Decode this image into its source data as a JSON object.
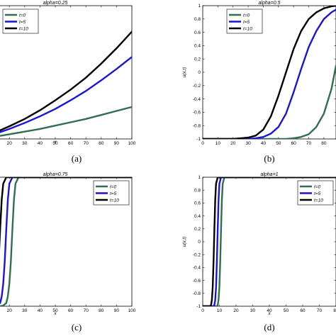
{
  "colors": {
    "t0": "#2f6e4e",
    "t5": "#1a14d6",
    "t10": "#000000"
  },
  "chart_data": [
    {
      "type": "line",
      "panel": "a",
      "caption": "(a)",
      "title": "alpha=0.25",
      "xlabel": "x",
      "ylabel": "",
      "xlim": [
        0,
        100
      ],
      "ylim": [
        -1,
        1
      ],
      "xticks": [
        10,
        20,
        30,
        40,
        50,
        60,
        70,
        80,
        90,
        100
      ],
      "yticks": [],
      "legend_position": "top-left",
      "series": [
        {
          "name": "t=0",
          "color_key": "t0",
          "x": [
            0,
            10,
            20,
            30,
            40,
            50,
            60,
            70,
            80,
            90,
            100
          ],
          "y": [
            -1,
            -0.97,
            -0.93,
            -0.89,
            -0.85,
            -0.8,
            -0.75,
            -0.7,
            -0.64,
            -0.58,
            -0.52
          ]
        },
        {
          "name": "t=5",
          "color_key": "t5",
          "x": [
            0,
            10,
            20,
            30,
            40,
            50,
            60,
            70,
            80,
            90,
            100
          ],
          "y": [
            -1,
            -0.93,
            -0.85,
            -0.76,
            -0.66,
            -0.55,
            -0.42,
            -0.28,
            -0.12,
            0.05,
            0.23
          ]
        },
        {
          "name": "t=10",
          "color_key": "t10",
          "x": [
            0,
            10,
            20,
            30,
            40,
            50,
            60,
            70,
            80,
            90,
            100
          ],
          "y": [
            -1,
            -0.91,
            -0.81,
            -0.7,
            -0.57,
            -0.42,
            -0.26,
            -0.08,
            0.13,
            0.36,
            0.61
          ]
        }
      ]
    },
    {
      "type": "line",
      "panel": "b",
      "caption": "(b)",
      "title": "alpha=0.5",
      "xlabel": "",
      "ylabel": "u(x,t)",
      "xlim": [
        0,
        88
      ],
      "ylim": [
        -1,
        1
      ],
      "xticks": [
        0,
        10,
        20,
        30,
        40,
        50,
        60,
        70,
        80
      ],
      "yticks": [
        -1,
        -0.8,
        -0.6,
        -0.4,
        -0.2,
        0,
        0.2,
        0.4,
        0.6,
        0.8,
        1
      ],
      "legend_position": "top-left",
      "series": [
        {
          "name": "t=0",
          "color_key": "t0",
          "x": [
            0,
            20,
            40,
            50,
            55,
            60,
            65,
            70,
            75,
            80,
            85,
            88
          ],
          "y": [
            -1,
            -1,
            -1,
            -1,
            -1,
            -0.99,
            -0.97,
            -0.93,
            -0.82,
            -0.62,
            -0.25,
            0.1
          ]
        },
        {
          "name": "t=5",
          "color_key": "t5",
          "x": [
            0,
            20,
            30,
            35,
            40,
            45,
            50,
            55,
            60,
            65,
            70,
            75,
            80,
            85,
            88
          ],
          "y": [
            -1,
            -1,
            -1,
            -0.99,
            -0.97,
            -0.92,
            -0.82,
            -0.62,
            -0.3,
            0.05,
            0.38,
            0.62,
            0.8,
            0.9,
            0.94
          ]
        },
        {
          "name": "t=10",
          "color_key": "t10",
          "x": [
            0,
            20,
            25,
            30,
            35,
            40,
            45,
            50,
            55,
            60,
            65,
            70,
            75,
            80,
            85,
            88
          ],
          "y": [
            -1,
            -1,
            -0.99,
            -0.98,
            -0.95,
            -0.86,
            -0.66,
            -0.35,
            0.0,
            0.35,
            0.62,
            0.8,
            0.9,
            0.96,
            0.99,
            1.0
          ]
        }
      ]
    },
    {
      "type": "line",
      "panel": "c",
      "caption": "(c)",
      "title": "alpha=0.75",
      "xlabel": "x",
      "ylabel": "",
      "xlim": [
        0,
        100
      ],
      "ylim": [
        -1,
        1
      ],
      "xticks": [
        10,
        20,
        30,
        40,
        50,
        60,
        70,
        80,
        90,
        100
      ],
      "yticks": [],
      "legend_position": "top-right",
      "series": [
        {
          "name": "t=0",
          "color_key": "t0",
          "x": [
            0,
            14,
            16,
            18,
            19,
            20,
            21,
            22,
            23,
            24,
            26,
            100
          ],
          "y": [
            -1,
            -1,
            -0.99,
            -0.95,
            -0.85,
            -0.65,
            -0.3,
            0.2,
            0.65,
            0.9,
            1,
            1
          ]
        },
        {
          "name": "t=5",
          "color_key": "t5",
          "x": [
            0,
            10,
            12,
            14,
            15,
            16,
            17,
            18,
            19,
            20,
            22,
            100
          ],
          "y": [
            -1,
            -1,
            -0.99,
            -0.95,
            -0.85,
            -0.65,
            -0.3,
            0.2,
            0.65,
            0.9,
            1,
            1
          ]
        },
        {
          "name": "t=10",
          "color_key": "t10",
          "x": [
            0,
            6,
            8,
            10,
            11,
            12,
            13,
            14,
            15,
            16,
            18,
            100
          ],
          "y": [
            -1,
            -1,
            -0.99,
            -0.95,
            -0.85,
            -0.65,
            -0.3,
            0.2,
            0.65,
            0.9,
            1,
            1
          ]
        }
      ]
    },
    {
      "type": "line",
      "panel": "d",
      "caption": "(d)",
      "title": "alpha=1",
      "xlabel": "x",
      "ylabel": "u(x,t)",
      "xlim": [
        0,
        80
      ],
      "ylim": [
        -1,
        1
      ],
      "xticks": [
        0,
        10,
        20,
        30,
        40,
        50,
        60,
        70,
        80
      ],
      "yticks": [
        -1,
        -0.8,
        -0.6,
        -0.4,
        -0.2,
        0,
        0.2,
        0.4,
        0.6,
        0.8,
        1
      ],
      "legend_position": "top-right",
      "series": [
        {
          "name": "t=0",
          "color_key": "t0",
          "x": [
            0,
            8.5,
            9,
            9.5,
            10,
            10.5,
            11,
            11.5,
            12,
            13,
            80
          ],
          "y": [
            -1,
            -1,
            -0.98,
            -0.9,
            -0.7,
            -0.3,
            0.2,
            0.65,
            0.9,
            1,
            1
          ]
        },
        {
          "name": "t=5",
          "color_key": "t5",
          "x": [
            0,
            6.5,
            7,
            7.5,
            8,
            8.5,
            9,
            9.5,
            10,
            11,
            80
          ],
          "y": [
            -1,
            -1,
            -0.98,
            -0.9,
            -0.7,
            -0.3,
            0.2,
            0.65,
            0.9,
            1,
            1
          ]
        },
        {
          "name": "t=10",
          "color_key": "t10",
          "x": [
            0,
            4.5,
            5,
            5.5,
            6,
            6.5,
            7,
            7.5,
            8,
            9,
            80
          ],
          "y": [
            -1,
            -1,
            -0.98,
            -0.9,
            -0.7,
            -0.3,
            0.2,
            0.65,
            0.9,
            1,
            1
          ]
        }
      ]
    }
  ]
}
